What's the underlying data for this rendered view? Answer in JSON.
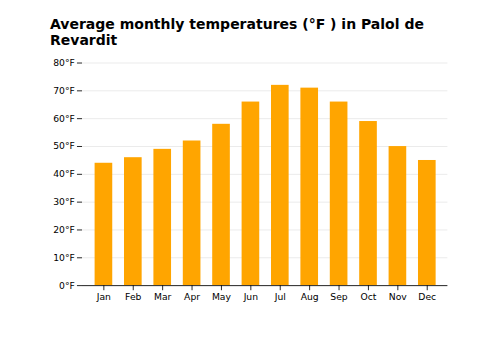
{
  "chart_data": {
    "type": "bar",
    "title": "Average monthly temperatures (°F ) in Palol de Revardit",
    "categories": [
      "Jan",
      "Feb",
      "Mar",
      "Apr",
      "May",
      "Jun",
      "Jul",
      "Aug",
      "Sep",
      "Oct",
      "Nov",
      "Dec"
    ],
    "values": [
      44,
      46,
      49,
      52,
      58,
      66,
      72,
      71,
      66,
      59,
      50,
      45
    ],
    "color": "#FFA500",
    "ylim": [
      0,
      80
    ],
    "yticks": [
      {
        "value": 0,
        "label": "0°F"
      },
      {
        "value": 10,
        "label": "10°F"
      },
      {
        "value": 20,
        "label": "20°F"
      },
      {
        "value": 30,
        "label": "30°F"
      },
      {
        "value": 40,
        "label": "40°F"
      },
      {
        "value": 50,
        "label": "50°F"
      },
      {
        "value": 60,
        "label": "60°F"
      },
      {
        "value": 70,
        "label": "70°F"
      },
      {
        "value": 80,
        "label": "80°F"
      }
    ],
    "grid": true
  }
}
